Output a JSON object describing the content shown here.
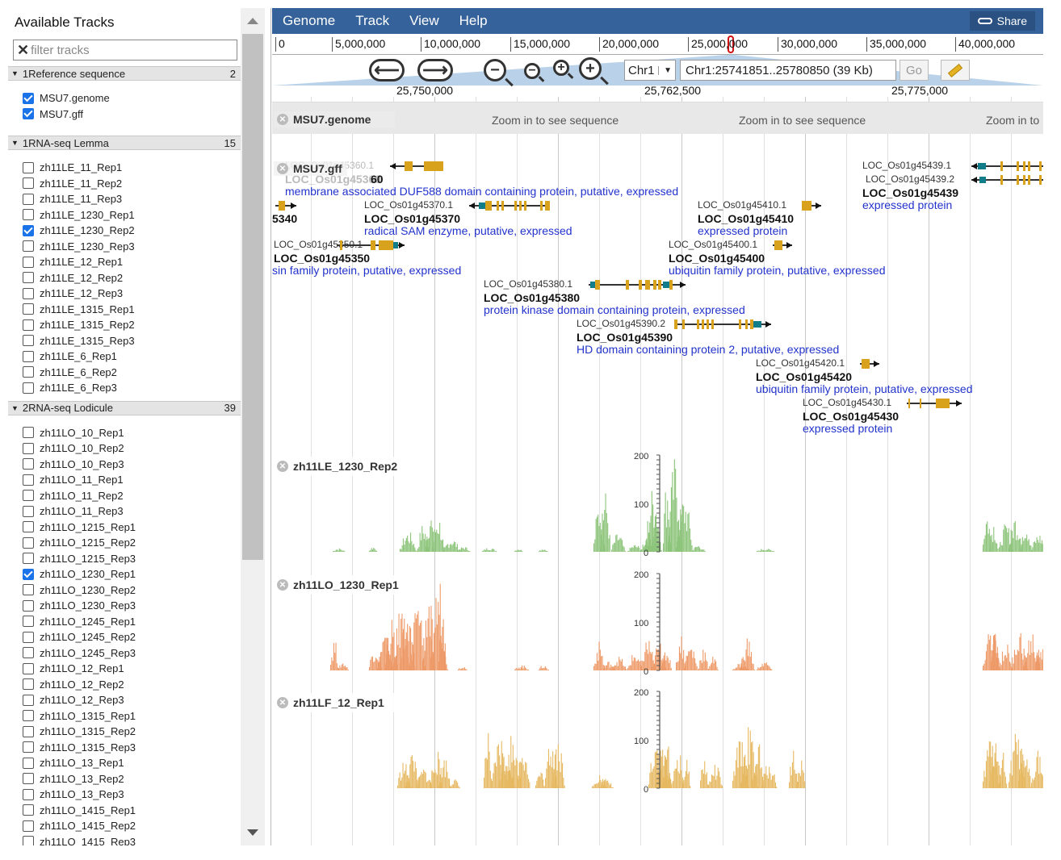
{
  "left": {
    "title": "Available Tracks",
    "filter_placeholder": "filter tracks",
    "categories": [
      {
        "name": "1Reference sequence",
        "count": "2"
      },
      {
        "name": "1RNA-seq Lemma",
        "count": "15"
      },
      {
        "name": "2RNA-seq Lodicule",
        "count": "39"
      }
    ],
    "ref_items": [
      "MSU7.genome",
      "MSU7.gff"
    ],
    "lemma_items": [
      "zh11LE_11_Rep1",
      "zh11LE_11_Rep2",
      "zh11LE_11_Rep3",
      "zh11LE_1230_Rep1",
      "zh11LE_1230_Rep2",
      "zh11LE_1230_Rep3",
      "zh11LE_12_Rep1",
      "zh11LE_12_Rep2",
      "zh11LE_12_Rep3",
      "zh11LE_1315_Rep1",
      "zh11LE_1315_Rep2",
      "zh11LE_1315_Rep3",
      "zh11LE_6_Rep1",
      "zh11LE_6_Rep2",
      "zh11LE_6_Rep3"
    ],
    "lodicule_items": [
      "zh11LO_10_Rep1",
      "zh11LO_10_Rep2",
      "zh11LO_10_Rep3",
      "zh11LO_11_Rep1",
      "zh11LO_11_Rep2",
      "zh11LO_11_Rep3",
      "zh11LO_1215_Rep1",
      "zh11LO_1215_Rep2",
      "zh11LO_1215_Rep3",
      "zh11LO_1230_Rep1",
      "zh11LO_1230_Rep2",
      "zh11LO_1230_Rep3",
      "zh11LO_1245_Rep1",
      "zh11LO_1245_Rep2",
      "zh11LO_1245_Rep3",
      "zh11LO_12_Rep1",
      "zh11LO_12_Rep2",
      "zh11LO_12_Rep3",
      "zh11LO_1315_Rep1",
      "zh11LO_1315_Rep2",
      "zh11LO_1315_Rep3",
      "zh11LO_13_Rep1",
      "zh11LO_13_Rep2",
      "zh11LO_13_Rep3",
      "zh11LO_1415_Rep1",
      "zh11LO_1415_Rep2",
      "zh11LO_1415_Rep3"
    ],
    "checked": [
      "MSU7.genome",
      "MSU7.gff",
      "zh11LE_1230_Rep2",
      "zh11LO_1230_Rep1"
    ]
  },
  "menu": {
    "items": [
      "Genome",
      "Track",
      "View",
      "Help"
    ],
    "share": "Share"
  },
  "overview": {
    "ticks": [
      "0",
      "5,000,000",
      "10,000,000",
      "15,000,000",
      "20,000,000",
      "25,000,000",
      "30,000,000",
      "35,000,000",
      "40,000,000"
    ]
  },
  "nav": {
    "chrom": "Chr1",
    "location": "Chr1:25741851..25780850 (39 Kb)",
    "go": "Go"
  },
  "ruler": {
    "ticks": [
      "25,750,000",
      "25,762,500",
      "25,775,000"
    ]
  },
  "seq_track": {
    "label": "MSU7.genome",
    "message": "Zoom in to see sequence",
    "message_cut": "Zoom in to"
  },
  "gff_track": {
    "label": "MSU7.gff"
  },
  "features": [
    {
      "tx": "LOC_Os01g45360.1",
      "name": "LOC_Os01g45360",
      "name_cut": "60",
      "desc": "membrane associated DUF588 domain containing protein, putative, expressed"
    },
    {
      "tx": "",
      "name": "",
      "name_cut": "5340",
      "desc": ""
    },
    {
      "tx": "LOC_Os01g45370.1",
      "name": "LOC_Os01g45370",
      "desc": "radical SAM enzyme, putative, expressed"
    },
    {
      "tx": "LOC_Os01g45350.1",
      "name": "LOC_Os01g45350",
      "desc": "sin family protein, putative, expressed"
    },
    {
      "tx": "LOC_Os01g45380.1",
      "name": "LOC_Os01g45380",
      "desc": "protein kinase domain containing protein, expressed"
    },
    {
      "tx": "LOC_Os01g45390.2",
      "name": "LOC_Os01g45390",
      "desc": "HD domain containing protein 2, putative, expressed"
    },
    {
      "tx": "LOC_Os01g45410.1",
      "name": "LOC_Os01g45410",
      "desc": "expressed protein"
    },
    {
      "tx": "LOC_Os01g45400.1",
      "name": "LOC_Os01g45400",
      "desc": "ubiquitin family protein, putative, expressed"
    },
    {
      "tx": "LOC_Os01g45420.1",
      "name": "LOC_Os01g45420",
      "desc": "ubiquitin family protein, putative, expressed"
    },
    {
      "tx": "LOC_Os01g45430.1",
      "name": "LOC_Os01g45430",
      "desc": "expressed protein"
    },
    {
      "tx": "LOC_Os01g45439.1",
      "tx2": "LOC_Os01g45439.2",
      "name": "LOC_Os01g45439",
      "desc": "expressed protein"
    }
  ],
  "coverage_tracks": [
    {
      "label": "zh11LE_1230_Rep2",
      "color": "#8cc47a",
      "y_ticks": [
        "200",
        "100",
        "0"
      ]
    },
    {
      "label": "zh11LO_1230_Rep1",
      "color": "#ee9a68",
      "y_ticks": [
        "200",
        "100",
        "0"
      ]
    },
    {
      "label": "zh11LF_12_Rep1",
      "color": "#e6b860",
      "y_ticks": [
        "200",
        "100",
        "0"
      ]
    }
  ]
}
